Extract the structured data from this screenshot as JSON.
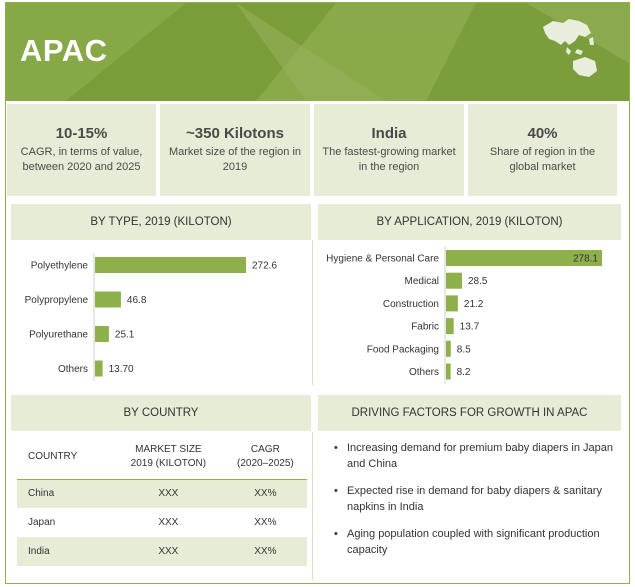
{
  "header": {
    "title": "APAC"
  },
  "kpis": [
    {
      "big": "10-15%",
      "small": "CAGR, in terms of value, between 2020 and 2025"
    },
    {
      "big": "~350 Kilotons",
      "small": "Market size of the region in 2019"
    },
    {
      "big": "India",
      "small": "The fastest-growing market in the region"
    },
    {
      "big": "40%",
      "small": "Share of region in the global market"
    }
  ],
  "panels": {
    "by_type": "BY TYPE, 2019 (KILOTON)",
    "by_application": "BY APPLICATION, 2019 (KILOTON)",
    "by_country": "BY COUNTRY",
    "driving_factors": "DRIVING FACTORS FOR GROWTH IN APAC"
  },
  "colors": {
    "accent": "#7ea03d",
    "bar": "#8db04b",
    "panel": "#e6ecd6"
  },
  "chart_data": [
    {
      "type": "bar",
      "orientation": "horizontal",
      "title": "BY TYPE, 2019 (KILOTON)",
      "categories": [
        "Polyethylene",
        "Polypropylene",
        "Polyurethane",
        "Others"
      ],
      "values": [
        272.6,
        46.8,
        25.1,
        13.7
      ],
      "value_labels": [
        "272.6",
        "46.8",
        "25.1",
        "13.70"
      ],
      "label_position": "outside"
    },
    {
      "type": "bar",
      "orientation": "horizontal",
      "title": "BY APPLICATION, 2019 (KILOTON)",
      "categories": [
        "Hygiene & Personal Care",
        "Medical",
        "Construction",
        "Fabric",
        "Food Packaging",
        "Others"
      ],
      "values": [
        278.1,
        28.5,
        21.2,
        13.7,
        8.5,
        8.2
      ],
      "value_labels": [
        "278.1",
        "28.5",
        "21.2",
        "13.7",
        "8.5",
        "8.2"
      ],
      "label_position": "outside-or-inside-end"
    },
    {
      "type": "table",
      "title": "BY COUNTRY",
      "columns": [
        "COUNTRY",
        "MARKET SIZE 2019 (KILOTON)",
        "CAGR (2020–2025)"
      ],
      "rows": [
        [
          "China",
          "XXX",
          "XX%"
        ],
        [
          "Japan",
          "XXX",
          "XX%"
        ],
        [
          "India",
          "XXX",
          "XX%"
        ]
      ]
    }
  ],
  "country_table": {
    "headers": [
      "COUNTRY",
      "MARKET SIZE\n2019 (KILOTON)",
      "CAGR\n(2020–2025)"
    ],
    "rows": [
      {
        "country": "China",
        "size": "XXX",
        "cagr": "XX%"
      },
      {
        "country": "Japan",
        "size": "XXX",
        "cagr": "XX%"
      },
      {
        "country": "India",
        "size": "XXX",
        "cagr": "XX%"
      }
    ]
  },
  "factors": [
    "Increasing demand for premium baby diapers in Japan and China",
    "Expected rise in demand for baby diapers & sanitary napkins in India",
    "Aging population coupled with significant production capacity"
  ],
  "icons": {
    "map": "asia-pacific-map-icon"
  }
}
